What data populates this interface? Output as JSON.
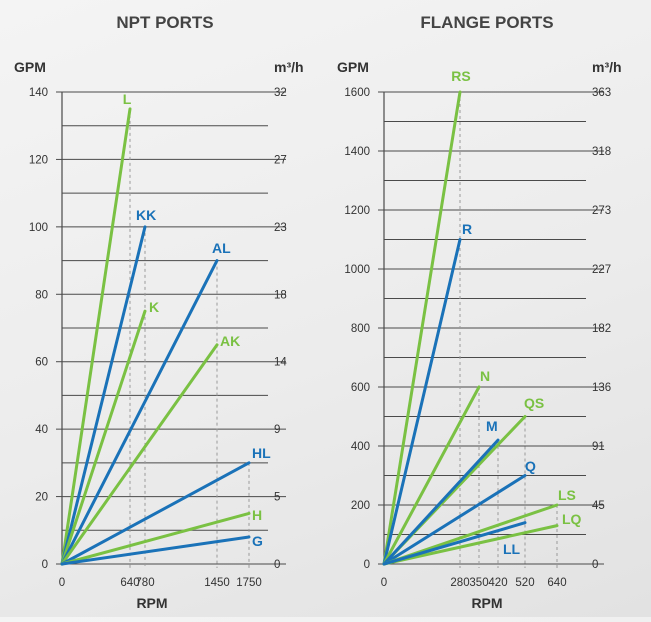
{
  "colors": {
    "blue": "#1a72b8",
    "green": "#7ac143",
    "grid": "#4a4a4a",
    "guide": "#9a9a9a",
    "text": "#333333"
  },
  "chart_data": [
    {
      "type": "line",
      "title": "NPT PORTS",
      "xlabel": "RPM",
      "ylabel": "GPM",
      "y2label": "m³/h",
      "xlim": [
        0,
        1900
      ],
      "ylim": [
        0,
        140
      ],
      "yticks": [
        0,
        20,
        40,
        60,
        80,
        100,
        120,
        140
      ],
      "y2ticks": [
        "0",
        "5",
        "9",
        "14",
        "18",
        "23",
        "27",
        "32"
      ],
      "xticks": [
        0,
        640,
        780,
        1450,
        1750
      ],
      "gridlines": 14,
      "series": [
        {
          "name": "L",
          "color": "green",
          "x": [
            0,
            640
          ],
          "y": [
            0,
            135
          ]
        },
        {
          "name": "KK",
          "color": "blue",
          "x": [
            0,
            780
          ],
          "y": [
            0,
            100
          ]
        },
        {
          "name": "K",
          "color": "green",
          "x": [
            0,
            780
          ],
          "y": [
            0,
            75
          ]
        },
        {
          "name": "AL",
          "color": "blue",
          "x": [
            0,
            1450
          ],
          "y": [
            0,
            90
          ]
        },
        {
          "name": "AK",
          "color": "green",
          "x": [
            0,
            1450
          ],
          "y": [
            0,
            65
          ]
        },
        {
          "name": "HL",
          "color": "blue",
          "x": [
            0,
            1750
          ],
          "y": [
            0,
            30
          ]
        },
        {
          "name": "H",
          "color": "green",
          "x": [
            0,
            1750
          ],
          "y": [
            0,
            15
          ]
        },
        {
          "name": "G",
          "color": "blue",
          "x": [
            0,
            1750
          ],
          "y": [
            0,
            8
          ]
        }
      ]
    },
    {
      "type": "line",
      "title": "FLANGE PORTS",
      "xlabel": "RPM",
      "ylabel": "GPM",
      "y2label": "m³/h",
      "xlim": [
        0,
        700
      ],
      "ylim": [
        0,
        1600
      ],
      "yticks": [
        0,
        200,
        400,
        600,
        800,
        1000,
        1200,
        1400,
        1600
      ],
      "y2ticks": [
        "0",
        "45",
        "91",
        "136",
        "182",
        "227",
        "273",
        "318",
        "363"
      ],
      "xticks": [
        0,
        280,
        350,
        420,
        520,
        640
      ],
      "gridlines": 16,
      "series": [
        {
          "name": "RS",
          "color": "green",
          "x": [
            0,
            280
          ],
          "y": [
            0,
            1600
          ]
        },
        {
          "name": "R",
          "color": "blue",
          "x": [
            0,
            280
          ],
          "y": [
            0,
            1100
          ]
        },
        {
          "name": "N",
          "color": "green",
          "x": [
            0,
            350
          ],
          "y": [
            0,
            600
          ]
        },
        {
          "name": "QS",
          "color": "green",
          "x": [
            0,
            520
          ],
          "y": [
            0,
            500
          ]
        },
        {
          "name": "M",
          "color": "blue",
          "x": [
            0,
            420
          ],
          "y": [
            0,
            420
          ]
        },
        {
          "name": "Q",
          "color": "blue",
          "x": [
            0,
            520
          ],
          "y": [
            0,
            300
          ]
        },
        {
          "name": "LS",
          "color": "green",
          "x": [
            0,
            640
          ],
          "y": [
            0,
            200
          ]
        },
        {
          "name": "LQ",
          "color": "green",
          "x": [
            0,
            640
          ],
          "y": [
            0,
            130
          ]
        },
        {
          "name": "LL",
          "color": "blue",
          "x": [
            0,
            520
          ],
          "y": [
            0,
            140
          ]
        }
      ]
    }
  ]
}
